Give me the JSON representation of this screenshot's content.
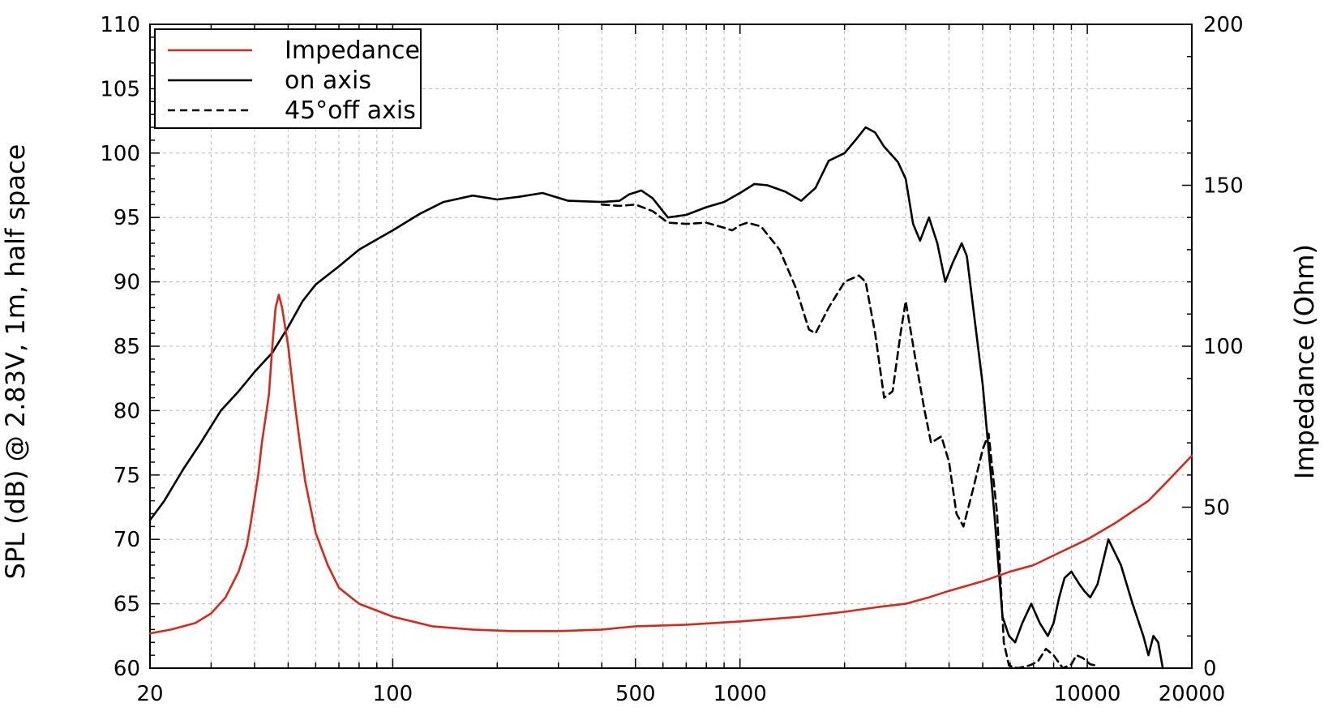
{
  "chart_data": {
    "type": "line",
    "title": "",
    "xlabel": "",
    "ylabel": "SPL (dB) @ 2.83V, 1m, half space",
    "y2label": "Impedance (Ohm)",
    "xscale": "log",
    "xlim": [
      20,
      20000
    ],
    "ylim": [
      60,
      110
    ],
    "y2lim": [
      0,
      200
    ],
    "grid": true,
    "legend_position": "top-left",
    "x_ticks": [
      20,
      100,
      500,
      1000,
      10000,
      20000
    ],
    "x_tick_labels": [
      "20",
      "100",
      "500",
      "1000",
      "10000",
      "20000"
    ],
    "y_ticks": [
      60,
      65,
      70,
      75,
      80,
      85,
      90,
      95,
      100,
      105,
      110
    ],
    "y_tick_labels": [
      "60",
      "65",
      "70",
      "75",
      "80",
      "85",
      "90",
      "95",
      "100",
      "105",
      "110"
    ],
    "y2_ticks": [
      0,
      50,
      100,
      150,
      200
    ],
    "y2_tick_labels": [
      "0",
      "50",
      "100",
      "150",
      "200"
    ],
    "series": [
      {
        "name": "Impedance",
        "axis": "right",
        "color": "#d42a1e",
        "dash": "solid",
        "points": [
          [
            20,
            10.8
          ],
          [
            23,
            12
          ],
          [
            27,
            14
          ],
          [
            30,
            17
          ],
          [
            33,
            22
          ],
          [
            36,
            30
          ],
          [
            38,
            38
          ],
          [
            39,
            45
          ],
          [
            41,
            60
          ],
          [
            42,
            70
          ],
          [
            44,
            85
          ],
          [
            45,
            100
          ],
          [
            46,
            112
          ],
          [
            47,
            116
          ],
          [
            48,
            112
          ],
          [
            50,
            100
          ],
          [
            52,
            84
          ],
          [
            54,
            70
          ],
          [
            56,
            58
          ],
          [
            60,
            42
          ],
          [
            65,
            32
          ],
          [
            70,
            25
          ],
          [
            80,
            20
          ],
          [
            100,
            16
          ],
          [
            130,
            13
          ],
          [
            170,
            12
          ],
          [
            220,
            11.5
          ],
          [
            300,
            11.5
          ],
          [
            400,
            12
          ],
          [
            500,
            13
          ],
          [
            700,
            13.5
          ],
          [
            1000,
            14.5
          ],
          [
            1500,
            16
          ],
          [
            2000,
            17.5
          ],
          [
            2500,
            19
          ],
          [
            3000,
            20
          ],
          [
            3500,
            22
          ],
          [
            4000,
            24
          ],
          [
            5000,
            27
          ],
          [
            6000,
            30
          ],
          [
            7000,
            32
          ],
          [
            8000,
            35
          ],
          [
            10000,
            40
          ],
          [
            12000,
            45
          ],
          [
            15000,
            52
          ],
          [
            17000,
            58
          ],
          [
            20000,
            66
          ]
        ]
      },
      {
        "name": "on axis",
        "axis": "left",
        "color": "#000000",
        "dash": "solid",
        "points": [
          [
            20,
            71.5
          ],
          [
            22,
            73
          ],
          [
            25,
            75.5
          ],
          [
            28,
            77.5
          ],
          [
            32,
            80
          ],
          [
            36,
            81.5
          ],
          [
            40,
            83
          ],
          [
            45,
            84.5
          ],
          [
            50,
            86.5
          ],
          [
            55,
            88.5
          ],
          [
            60,
            89.8
          ],
          [
            70,
            91.2
          ],
          [
            80,
            92.5
          ],
          [
            90,
            93.3
          ],
          [
            100,
            94
          ],
          [
            120,
            95.3
          ],
          [
            140,
            96.2
          ],
          [
            170,
            96.7
          ],
          [
            200,
            96.4
          ],
          [
            230,
            96.6
          ],
          [
            270,
            96.9
          ],
          [
            320,
            96.3
          ],
          [
            400,
            96.2
          ],
          [
            450,
            96.3
          ],
          [
            480,
            96.8
          ],
          [
            520,
            97.1
          ],
          [
            560,
            96.5
          ],
          [
            620,
            95
          ],
          [
            700,
            95.2
          ],
          [
            800,
            95.8
          ],
          [
            900,
            96.2
          ],
          [
            1000,
            96.9
          ],
          [
            1100,
            97.6
          ],
          [
            1200,
            97.5
          ],
          [
            1350,
            97
          ],
          [
            1500,
            96.3
          ],
          [
            1650,
            97.3
          ],
          [
            1800,
            99.4
          ],
          [
            2000,
            100
          ],
          [
            2150,
            101
          ],
          [
            2300,
            102
          ],
          [
            2450,
            101.6
          ],
          [
            2600,
            100.5
          ],
          [
            2850,
            99.3
          ],
          [
            3000,
            98
          ],
          [
            3150,
            94.5
          ],
          [
            3300,
            93.2
          ],
          [
            3500,
            95
          ],
          [
            3700,
            93
          ],
          [
            3900,
            90
          ],
          [
            4100,
            91.5
          ],
          [
            4350,
            93
          ],
          [
            4500,
            92
          ],
          [
            5000,
            82
          ],
          [
            5400,
            72
          ],
          [
            5700,
            64
          ],
          [
            5950,
            62.5
          ],
          [
            6200,
            62
          ],
          [
            6500,
            63.5
          ],
          [
            6900,
            65
          ],
          [
            7300,
            63.5
          ],
          [
            7700,
            62.5
          ],
          [
            8000,
            63.5
          ],
          [
            8300,
            65.5
          ],
          [
            8600,
            67
          ],
          [
            9000,
            67.5
          ],
          [
            9500,
            66.5
          ],
          [
            9800,
            66
          ],
          [
            10200,
            65.5
          ],
          [
            10700,
            66.5
          ],
          [
            11500,
            70
          ],
          [
            12500,
            68
          ],
          [
            13500,
            65
          ],
          [
            14500,
            62.5
          ],
          [
            15000,
            61
          ],
          [
            15500,
            62.5
          ],
          [
            16000,
            62
          ],
          [
            16500,
            60
          ]
        ]
      },
      {
        "name": "45°off axis",
        "axis": "left",
        "color": "#000000",
        "dash": "dashed",
        "points": [
          [
            400,
            96
          ],
          [
            450,
            95.9
          ],
          [
            500,
            96
          ],
          [
            560,
            95.5
          ],
          [
            620,
            94.6
          ],
          [
            700,
            94.5
          ],
          [
            800,
            94.6
          ],
          [
            900,
            94.2
          ],
          [
            950,
            94
          ],
          [
            1000,
            94.4
          ],
          [
            1050,
            94.6
          ],
          [
            1150,
            94.3
          ],
          [
            1300,
            92.5
          ],
          [
            1450,
            89.5
          ],
          [
            1580,
            86.3
          ],
          [
            1650,
            86
          ],
          [
            1800,
            88
          ],
          [
            2000,
            90
          ],
          [
            2200,
            90.5
          ],
          [
            2300,
            90
          ],
          [
            2450,
            86
          ],
          [
            2600,
            81
          ],
          [
            2750,
            81.5
          ],
          [
            2900,
            86
          ],
          [
            3000,
            88.5
          ],
          [
            3200,
            84
          ],
          [
            3400,
            80
          ],
          [
            3550,
            77.5
          ],
          [
            3800,
            78
          ],
          [
            4000,
            76
          ],
          [
            4200,
            72
          ],
          [
            4400,
            71
          ],
          [
            4700,
            74
          ],
          [
            5000,
            77
          ],
          [
            5200,
            78.2
          ],
          [
            5500,
            72
          ],
          [
            5750,
            62
          ],
          [
            5950,
            60.2
          ],
          [
            6300,
            60
          ],
          [
            6800,
            60.2
          ],
          [
            7200,
            60.5
          ],
          [
            7600,
            61.5
          ],
          [
            8000,
            61
          ],
          [
            8500,
            60
          ],
          [
            9000,
            60.3
          ],
          [
            9300,
            61
          ],
          [
            9700,
            60.8
          ],
          [
            10200,
            60.3
          ],
          [
            10600,
            60.2
          ]
        ]
      }
    ]
  }
}
